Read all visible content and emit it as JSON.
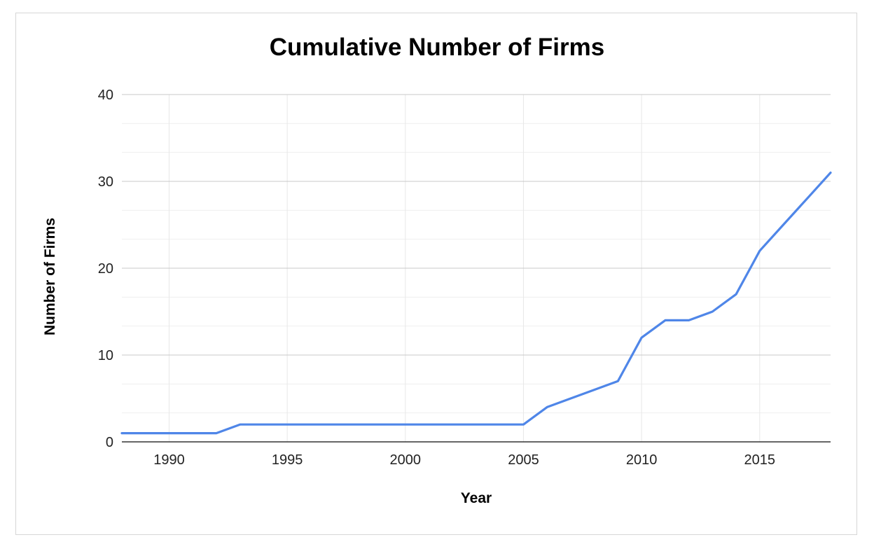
{
  "chart_data": {
    "type": "line",
    "title": "Cumulative Number of Firms",
    "xlabel": "Year",
    "ylabel": "Number of Firms",
    "xlim": [
      1988,
      2018
    ],
    "ylim": [
      0,
      40
    ],
    "x_ticks": [
      1990,
      1995,
      2000,
      2005,
      2010,
      2015
    ],
    "y_ticks": [
      0,
      10,
      20,
      30,
      40
    ],
    "grid": true,
    "legend": "none",
    "series": [
      {
        "color": "#4f86e8",
        "x": [
          1988,
          1989,
          1990,
          1991,
          1992,
          1993,
          1994,
          1995,
          1996,
          1997,
          1998,
          1999,
          2000,
          2001,
          2002,
          2003,
          2004,
          2005,
          2006,
          2007,
          2008,
          2009,
          2010,
          2011,
          2012,
          2013,
          2014,
          2015,
          2016,
          2017,
          2018
        ],
        "values": [
          1,
          1,
          1,
          1,
          1,
          2,
          2,
          2,
          2,
          2,
          2,
          2,
          2,
          2,
          2,
          2,
          2,
          2,
          4,
          5,
          6,
          7,
          12,
          14,
          14,
          15,
          17,
          22,
          25,
          28,
          31
        ]
      }
    ]
  }
}
